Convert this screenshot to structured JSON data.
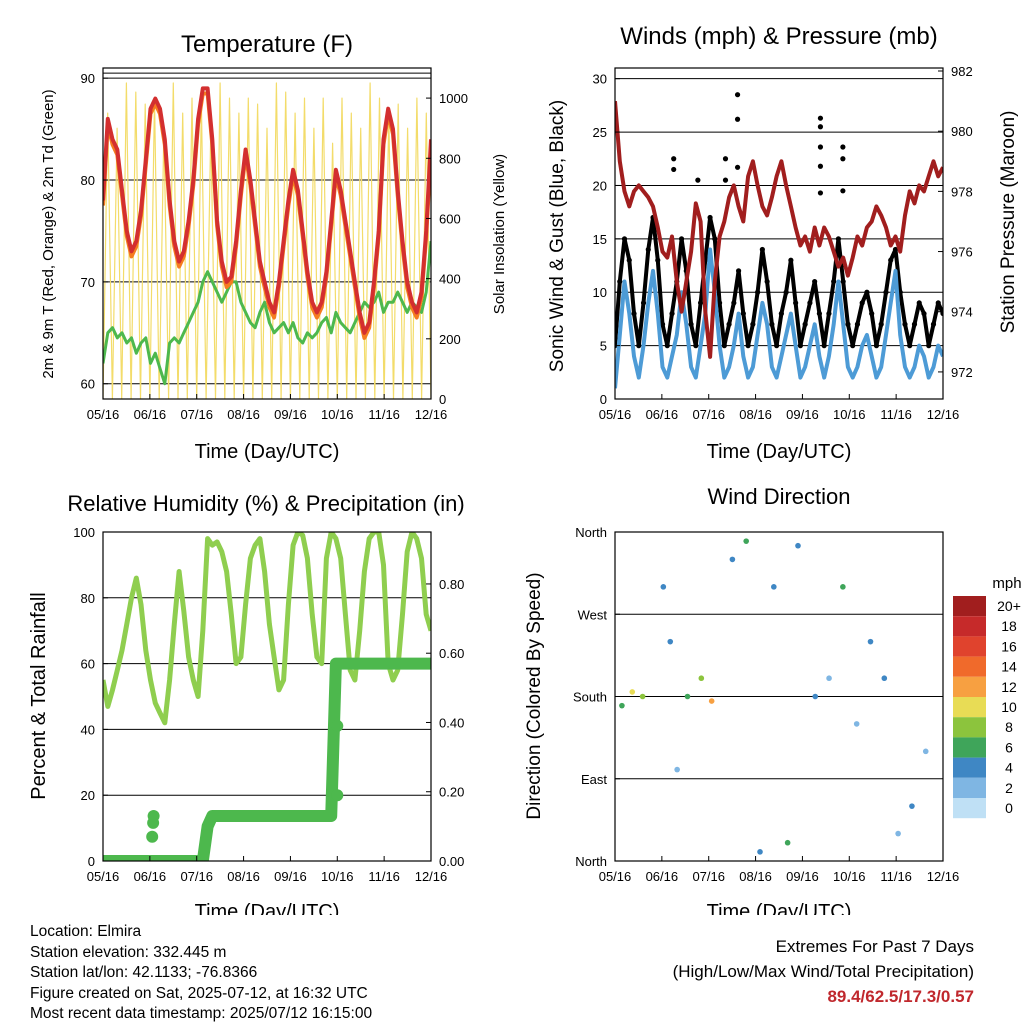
{
  "colors": {
    "temp2m": "#d32f2f",
    "temp9m": "#f57c20",
    "dewpoint": "#4db84d",
    "insolation": "#f3dc6a",
    "gust": "#000000",
    "wind": "#4d9bd6",
    "pressure": "#a11e1e",
    "rh": "#8fce4f",
    "precip": "#4db84d",
    "extremes": "#c0282d"
  },
  "footer": {
    "location": "Location: Elmira",
    "elevation": "Station elevation: 332.445 m",
    "latlon": "Station lat/lon: 42.1133; -76.8366",
    "created": "Figure created on Sat, 2025-07-12, at 16:32 UTC",
    "latest": "Most recent data timestamp: 2025/07/12 16:15:00",
    "extremes_title": "Extremes For Past 7 Days",
    "extremes_subtitle": "(High/Low/Max Wind/Total Precipitation)",
    "extremes_values": "89.4/62.5/17.3/0.57"
  },
  "chart_data": [
    {
      "id": "temperature",
      "type": "line",
      "title": "Temperature (F)",
      "xlabel": "Time (Day/UTC)",
      "ylabel": "2m & 9m T (Red, Orange) & 2m Td (Green)",
      "y2label": "Solar Insolation (Yellow)",
      "xticks": [
        "05/16",
        "06/16",
        "07/16",
        "08/16",
        "09/16",
        "10/16",
        "11/16",
        "12/16"
      ],
      "ylim": [
        58.5,
        91
      ],
      "yticks": [
        60,
        70,
        80,
        90
      ],
      "y2lim": [
        0,
        1100
      ],
      "y2ticks": [
        0,
        200,
        400,
        600,
        800,
        1000
      ],
      "hlines": [
        90.5
      ],
      "series": [
        {
          "key": "insolation",
          "axis": "y2",
          "values": [
            0,
            950,
            0,
            900,
            0,
            1050,
            0,
            1020,
            0,
            980,
            0,
            1000,
            0,
            900,
            0,
            1050,
            0,
            950,
            0,
            1000,
            0,
            980,
            0,
            900,
            0,
            1050,
            0,
            1000,
            0,
            950,
            0,
            1000,
            0,
            980,
            0,
            900,
            0,
            1050,
            0,
            1020,
            0,
            950,
            0,
            1000,
            0,
            900,
            0,
            1000,
            0,
            850,
            0,
            1000,
            0,
            950,
            0,
            900,
            0,
            1050,
            0,
            1000,
            0,
            950,
            0,
            980,
            0,
            900,
            0,
            1000,
            0,
            950,
            0
          ]
        },
        {
          "key": "temp2m",
          "axis": "y",
          "values": [
            78,
            86,
            84,
            83,
            79,
            75,
            73,
            74,
            77,
            82,
            87,
            88,
            87,
            84,
            78,
            74,
            72,
            73,
            76,
            80,
            86,
            89,
            89,
            84,
            76,
            72,
            70,
            70.5,
            74,
            79,
            83,
            80,
            76,
            72,
            70,
            68,
            67,
            70,
            74,
            78,
            81,
            79,
            75,
            71,
            68,
            67,
            68,
            71,
            76,
            81,
            79,
            76,
            73,
            70,
            67,
            65,
            66,
            70,
            75,
            84,
            87,
            85,
            79,
            74,
            70,
            68,
            67,
            69,
            75,
            84
          ]
        },
        {
          "key": "temp9m",
          "axis": "y",
          "values": [
            77.5,
            85.5,
            83.5,
            82.5,
            78.5,
            74.5,
            72.5,
            73.5,
            76.5,
            81.5,
            86.5,
            87.5,
            86.5,
            83.5,
            77.5,
            73.5,
            71.5,
            72.5,
            75.5,
            79.5,
            85.5,
            88.5,
            88.5,
            83.5,
            75.5,
            71.5,
            69.5,
            70,
            73.5,
            78.5,
            82.5,
            79.5,
            75.5,
            71.5,
            69.5,
            67.5,
            66.5,
            69.5,
            73.5,
            77.5,
            80.5,
            78.5,
            74.5,
            70.5,
            67.5,
            66.5,
            67.5,
            70.5,
            75.5,
            80.5,
            78.5,
            75.5,
            72.5,
            69.5,
            66.5,
            64.5,
            65.5,
            69.5,
            74.5,
            83.5,
            86.5,
            84.5,
            78.5,
            73.5,
            69.5,
            67.5,
            66.5,
            68.5,
            74.5,
            83
          ]
        },
        {
          "key": "dewpoint",
          "axis": "y",
          "values": [
            62,
            65,
            65.5,
            64.5,
            65,
            64,
            64.5,
            63,
            64,
            64.5,
            62,
            63,
            61.5,
            60,
            64,
            64.5,
            64,
            65,
            66,
            67,
            68,
            70,
            71,
            70,
            69,
            68,
            69,
            70,
            70,
            68,
            67,
            66,
            65.5,
            67,
            68,
            66,
            65,
            65.5,
            66,
            65,
            66,
            64.5,
            64,
            65,
            64.5,
            65,
            66,
            66.5,
            65,
            67,
            66,
            65.5,
            65,
            66,
            67,
            68,
            67.5,
            68,
            69,
            67,
            68,
            68,
            69,
            68,
            67,
            68,
            67.5,
            67,
            69,
            74
          ]
        }
      ]
    },
    {
      "id": "winds",
      "type": "line",
      "title": "Winds (mph) & Pressure (mb)",
      "xlabel": "Time (Day/UTC)",
      "ylabel": "Sonic Wind & Gust (Blue, Black)",
      "y2label": "Station Pressure (Maroon)",
      "xticks": [
        "05/16",
        "06/16",
        "07/16",
        "08/16",
        "09/16",
        "10/16",
        "11/16",
        "12/16"
      ],
      "ylim": [
        0,
        31
      ],
      "yticks": [
        0,
        5,
        10,
        15,
        20,
        25,
        30
      ],
      "y2lim": [
        971.1,
        982.1
      ],
      "y2ticks": [
        972,
        974,
        976,
        978,
        980,
        982
      ],
      "hlines": [
        30
      ],
      "series": [
        {
          "key": "wind",
          "axis": "y",
          "values": [
            1,
            6,
            11,
            8,
            4,
            2,
            5,
            9,
            12,
            8,
            3,
            2,
            4,
            6,
            10,
            7,
            3,
            2,
            5,
            8,
            14,
            10,
            5,
            2,
            3,
            5,
            8,
            4,
            2,
            3,
            6,
            9,
            7,
            3,
            2,
            4,
            6,
            8,
            5,
            2,
            3,
            5,
            7,
            4,
            2,
            4,
            7,
            11,
            7,
            3,
            2,
            3,
            5,
            6,
            4,
            2,
            3,
            6,
            9,
            12,
            6,
            3,
            2,
            3,
            5,
            4,
            2,
            3,
            5,
            4
          ]
        },
        {
          "key": "gust",
          "axis": "y",
          "values": [
            5,
            11,
            15,
            13,
            8,
            5,
            9,
            14,
            17,
            13,
            7,
            5,
            8,
            11,
            15,
            12,
            7,
            5,
            9,
            13,
            17,
            15,
            9,
            5,
            7,
            9,
            12,
            8,
            5,
            7,
            10,
            14,
            11,
            7,
            5,
            8,
            10,
            13,
            9,
            5,
            7,
            9,
            11,
            8,
            5,
            8,
            11,
            15,
            11,
            7,
            5,
            7,
            9,
            10,
            8,
            5,
            7,
            10,
            13,
            14,
            10,
            7,
            5,
            7,
            9,
            8,
            5,
            7,
            9,
            8
          ]
        },
        {
          "key": "pressure",
          "axis": "y2",
          "values": [
            981,
            979,
            978,
            977.5,
            978,
            978.2,
            978,
            977.8,
            977.5,
            976.8,
            976,
            975.8,
            976.5,
            975,
            974,
            975,
            976,
            977.6,
            977,
            974,
            972.5,
            975,
            976.5,
            977,
            977.8,
            978.2,
            977.5,
            977,
            978.5,
            979,
            978.2,
            977.5,
            977.2,
            977.8,
            978.5,
            979,
            978.2,
            977.5,
            976.8,
            976.2,
            976.5,
            976,
            976.8,
            976.2,
            976.8,
            976.5,
            976,
            975.5,
            975.8,
            975.2,
            975.8,
            976.5,
            976.2,
            976.8,
            977,
            977.5,
            977.2,
            976.8,
            976.2,
            976.5,
            976,
            977.2,
            978,
            977.6,
            978.2,
            978,
            978.5,
            979,
            978.5,
            978.8
          ]
        }
      ],
      "outliers": [
        {
          "x": 3.2,
          "y": 22.5
        },
        {
          "x": 3.2,
          "y": 20.5
        },
        {
          "x": 3.55,
          "y": 28.5
        },
        {
          "x": 3.55,
          "y": 26.2
        },
        {
          "x": 3.55,
          "y": 21.7
        },
        {
          "x": 5.95,
          "y": 26.3
        },
        {
          "x": 5.95,
          "y": 25.5
        },
        {
          "x": 5.95,
          "y": 23.6
        },
        {
          "x": 5.95,
          "y": 21.8
        },
        {
          "x": 5.95,
          "y": 19.3
        },
        {
          "x": 6.6,
          "y": 23.6
        },
        {
          "x": 6.6,
          "y": 22.5
        },
        {
          "x": 6.6,
          "y": 19.5
        },
        {
          "x": 1.7,
          "y": 22.5
        },
        {
          "x": 1.7,
          "y": 21.5
        },
        {
          "x": 2.4,
          "y": 20.5
        }
      ]
    },
    {
      "id": "humidity",
      "type": "line",
      "title": "Relative Humidity (%) & Precipitation (in)",
      "xlabel": "Time (Day/UTC)",
      "ylabel": "Percent & Total Rainfall",
      "xticks": [
        "05/16",
        "06/16",
        "07/16",
        "08/16",
        "09/16",
        "10/16",
        "11/16",
        "12/16"
      ],
      "ylim": [
        0,
        100
      ],
      "yticks": [
        0,
        20,
        40,
        60,
        80,
        100
      ],
      "y2lim": [
        0,
        0.95
      ],
      "y2ticks": [
        "0.00",
        "0.20",
        "0.40",
        "0.60",
        "0.80"
      ],
      "series": [
        {
          "key": "rh",
          "axis": "y",
          "values": [
            55,
            47,
            52,
            58,
            64,
            72,
            80,
            86,
            78,
            64,
            55,
            48,
            45,
            42,
            55,
            72,
            88,
            76,
            62,
            55,
            50,
            70,
            98,
            96,
            97,
            94,
            88,
            75,
            60,
            62,
            78,
            92,
            96,
            98,
            88,
            72,
            62,
            52,
            55,
            78,
            96,
            100,
            99,
            92,
            75,
            62,
            60,
            92,
            100,
            98,
            92,
            75,
            58,
            55,
            70,
            88,
            98,
            100,
            100,
            90,
            60,
            55,
            58,
            75,
            94,
            100,
            98,
            92,
            75,
            70
          ]
        },
        {
          "key": "precip",
          "axis": "y2",
          "values": [
            0,
            0,
            0,
            0,
            0,
            0,
            0,
            0,
            0,
            0,
            0,
            0,
            0,
            0,
            0,
            0,
            0,
            0,
            0,
            0,
            0,
            0,
            0.1,
            0.13,
            0.13,
            0.13,
            0.13,
            0.13,
            0.13,
            0.13,
            0.13,
            0.13,
            0.13,
            0.13,
            0.13,
            0.13,
            0.13,
            0.13,
            0.13,
            0.13,
            0.13,
            0.13,
            0.13,
            0.13,
            0.13,
            0.13,
            0.13,
            0.13,
            0.13,
            0.57,
            0.57,
            0.57,
            0.57,
            0.57,
            0.57,
            0.57,
            0.57,
            0.57,
            0.57,
            0.57,
            0.57,
            0.57,
            0.57,
            0.57,
            0.57,
            0.57,
            0.57,
            0.57,
            0.57,
            0.57
          ]
        }
      ],
      "markers": [
        {
          "x": 1.05,
          "y": 0.07
        },
        {
          "x": 1.07,
          "y": 0.11
        },
        {
          "x": 1.08,
          "y": 0.13
        },
        {
          "x": 5.0,
          "y": 0.19
        },
        {
          "x": 5.0,
          "y": 0.39
        }
      ]
    },
    {
      "id": "direction",
      "type": "scatter",
      "title": "Wind Direction",
      "xlabel": "Time (Day/UTC)",
      "ylabel": "Direction (Colored By Speed)",
      "xticks": [
        "05/16",
        "06/16",
        "07/16",
        "08/16",
        "09/16",
        "10/16",
        "11/16",
        "12/16"
      ],
      "yticks": [
        "North",
        "East",
        "South",
        "West",
        "North"
      ],
      "ylim": [
        0,
        360
      ],
      "colorbar": {
        "title": "mph",
        "labels": [
          "20+",
          "18",
          "16",
          "14",
          "12",
          "10",
          "8",
          "6",
          "4",
          "2",
          "0"
        ],
        "colors": [
          "#a11e1e",
          "#c62a2a",
          "#e0432d",
          "#f06a2b",
          "#f7a041",
          "#e8dc55",
          "#8cc43d",
          "#3fa55a",
          "#3f87c4",
          "#7fb6e3",
          "#bfe0f5"
        ]
      },
      "clusters": [
        {
          "x": 0.2,
          "dir": 170,
          "speed": 6
        },
        {
          "x": 0.5,
          "dir": 185,
          "speed": 9
        },
        {
          "x": 0.8,
          "dir": 180,
          "speed": 7
        },
        {
          "x": 1.4,
          "dir": 300,
          "speed": 3
        },
        {
          "x": 1.6,
          "dir": 240,
          "speed": 4
        },
        {
          "x": 1.8,
          "dir": 100,
          "speed": 2
        },
        {
          "x": 2.1,
          "dir": 180,
          "speed": 5
        },
        {
          "x": 2.5,
          "dir": 200,
          "speed": 8
        },
        {
          "x": 2.8,
          "dir": 175,
          "speed": 11
        },
        {
          "x": 3.4,
          "dir": 330,
          "speed": 4
        },
        {
          "x": 3.8,
          "dir": 350,
          "speed": 5
        },
        {
          "x": 4.2,
          "dir": 10,
          "speed": 3
        },
        {
          "x": 4.6,
          "dir": 300,
          "speed": 3
        },
        {
          "x": 5.0,
          "dir": 20,
          "speed": 6
        },
        {
          "x": 5.3,
          "dir": 345,
          "speed": 4
        },
        {
          "x": 5.8,
          "dir": 180,
          "speed": 3
        },
        {
          "x": 6.2,
          "dir": 200,
          "speed": 2
        },
        {
          "x": 6.6,
          "dir": 300,
          "speed": 6
        },
        {
          "x": 7.0,
          "dir": 150,
          "speed": 2
        },
        {
          "x": 7.4,
          "dir": 240,
          "speed": 3
        },
        {
          "x": 7.8,
          "dir": 200,
          "speed": 4
        },
        {
          "x": 8.2,
          "dir": 30,
          "speed": 2
        },
        {
          "x": 8.6,
          "dir": 60,
          "speed": 3
        },
        {
          "x": 9.0,
          "dir": 120,
          "speed": 2
        }
      ]
    }
  ]
}
